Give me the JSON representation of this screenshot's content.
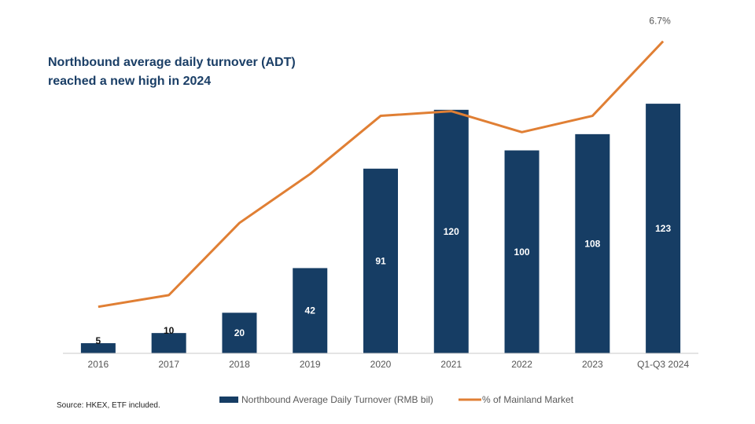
{
  "chart_data": {
    "type": "bar",
    "title_lines": [
      "Northbound average daily turnover (ADT)",
      "reached a new high in 2024"
    ],
    "categories": [
      "2016",
      "2017",
      "2018",
      "2019",
      "2020",
      "2021",
      "2022",
      "2023",
      "Q1-Q3 2024"
    ],
    "series": [
      {
        "name": "Northbound Average Daily Turnover (RMB bil)",
        "kind": "bar",
        "color": "#163d64",
        "values": [
          5,
          10,
          20,
          42,
          91,
          120,
          100,
          108,
          123
        ],
        "labels": [
          "5",
          "10",
          "20",
          "42",
          "91",
          "120",
          "100",
          "108",
          "123"
        ]
      },
      {
        "name": "% of Mainland Market",
        "kind": "line",
        "color": "#e07f34",
        "values": [
          1.0,
          1.25,
          2.8,
          3.85,
          5.1,
          5.2,
          4.75,
          5.1,
          6.7
        ],
        "labels": [
          "",
          "",
          "",
          "",
          "",
          "",
          "",
          "",
          "6.7%"
        ]
      }
    ],
    "ylim_bar": [
      0,
      130
    ],
    "ylim_line": [
      0,
      7.2
    ],
    "grid": false,
    "legend_position": "bottom"
  },
  "source": "Source: HKEX, ETF included."
}
